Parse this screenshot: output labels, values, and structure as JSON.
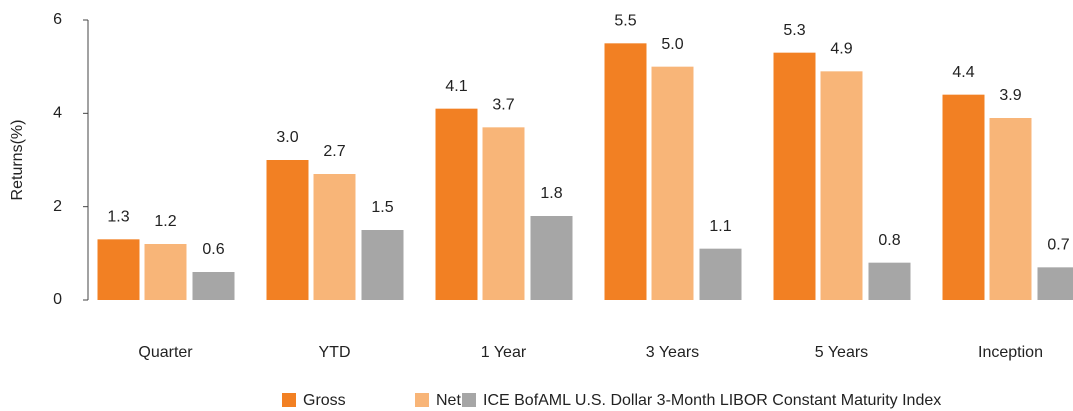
{
  "chart_data": {
    "type": "bar",
    "y_label": "Returns(%)",
    "categories": [
      "Quarter",
      "YTD",
      "1 Year",
      "3 Years",
      "5 Years",
      "Inception"
    ],
    "series": [
      {
        "name": "Gross",
        "color": "#f28023",
        "values": [
          1.3,
          3.0,
          4.1,
          5.5,
          5.3,
          4.4
        ],
        "value_labels": [
          "1.3",
          "3.0",
          "4.1",
          "5.5",
          "5.3",
          "4.4"
        ]
      },
      {
        "name": "Net",
        "color": "#f8b578",
        "values": [
          1.2,
          2.7,
          3.7,
          5.0,
          4.9,
          3.9
        ],
        "value_labels": [
          "1.2",
          "2.7",
          "3.7",
          "5.0",
          "4.9",
          "3.9"
        ]
      },
      {
        "name": "ICE BofAML U.S. Dollar 3-Month LIBOR Constant Maturity Index",
        "color": "#a6a6a6",
        "values": [
          0.6,
          1.5,
          1.8,
          1.1,
          0.8,
          0.7
        ],
        "value_labels": [
          "0.6",
          "1.5",
          "1.8",
          "1.1",
          "0.8",
          "0.7"
        ]
      }
    ],
    "ylim": [
      0,
      6
    ],
    "yticks": [
      0,
      2,
      4,
      6
    ],
    "grid": false
  }
}
